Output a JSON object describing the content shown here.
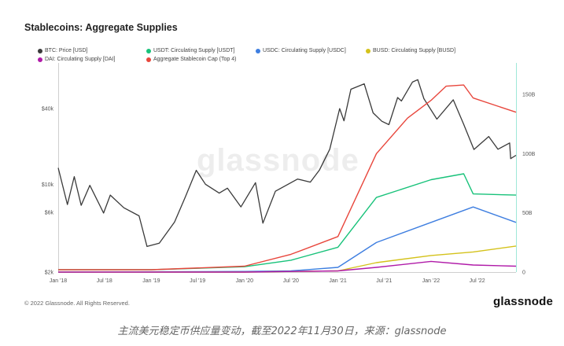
{
  "chart_data": {
    "type": "line",
    "title": "Stablecoins: Aggregate Supplies",
    "watermark": "glassnode",
    "x_ticks": [
      "Jan '18",
      "Jul '18",
      "Jan '19",
      "Jul '19",
      "Jan '20",
      "Jul '20",
      "Jan '21",
      "Jul '21",
      "Jan '22",
      "Jul '22"
    ],
    "x_range": [
      "2018-01-01",
      "2022-11-30"
    ],
    "y_left": {
      "label": "",
      "scale": "log",
      "ticks": [
        "$2k",
        "$6k",
        "$10k",
        "$40k"
      ],
      "values": [
        2000,
        6000,
        10000,
        40000
      ],
      "range": [
        2000,
        80000
      ]
    },
    "y_right": {
      "label": "",
      "scale": "linear",
      "ticks": [
        "0",
        "50B",
        "100B",
        "150B"
      ],
      "values": [
        0,
        50,
        100,
        150
      ],
      "range": [
        0,
        170
      ]
    },
    "grid": false,
    "legend_position": "top",
    "series": [
      {
        "name": "BTC: Price [USD]",
        "color": "#3a3a3a",
        "axis": "left",
        "x": [
          "2018-01-01",
          "2018-02-06",
          "2018-03-05",
          "2018-04-01",
          "2018-05-05",
          "2018-06-28",
          "2018-07-24",
          "2018-09-15",
          "2018-11-14",
          "2018-12-15",
          "2019-02-01",
          "2019-04-02",
          "2019-05-15",
          "2019-06-26",
          "2019-08-01",
          "2019-09-24",
          "2019-10-26",
          "2019-12-18",
          "2020-02-13",
          "2020-03-13",
          "2020-05-01",
          "2020-07-27",
          "2020-09-15",
          "2020-10-21",
          "2020-11-30",
          "2021-01-08",
          "2021-01-25",
          "2021-02-21",
          "2021-04-14",
          "2021-05-19",
          "2021-06-22",
          "2021-07-20",
          "2021-08-23",
          "2021-09-07",
          "2021-10-20",
          "2021-11-10",
          "2021-12-04",
          "2022-01-24",
          "2022-03-29",
          "2022-05-09",
          "2022-06-18",
          "2022-08-15",
          "2022-09-20",
          "2022-11-05",
          "2022-11-09",
          "2022-11-30"
        ],
        "values": [
          13500,
          6900,
          11500,
          6800,
          9800,
          5900,
          8200,
          6500,
          5600,
          3200,
          3400,
          5000,
          8000,
          12900,
          10000,
          8500,
          9300,
          6600,
          10300,
          4900,
          8800,
          11000,
          10400,
          13000,
          19000,
          40000,
          32000,
          57000,
          63000,
          37000,
          31700,
          29800,
          49000,
          46000,
          65000,
          68000,
          48000,
          33000,
          47000,
          30000,
          18900,
          24000,
          19000,
          21300,
          16000,
          17000
        ]
      },
      {
        "name": "USDT: Circulating Supply [USDT]",
        "color": "#18c27a",
        "axis": "right",
        "x": [
          "2018-01-01",
          "2019-01-01",
          "2020-01-01",
          "2020-07-01",
          "2021-01-01",
          "2021-06-01",
          "2022-01-01",
          "2022-05-09",
          "2022-06-15",
          "2022-11-30"
        ],
        "values": [
          2,
          2,
          4.5,
          10,
          21,
          63,
          78,
          83,
          66,
          65
        ]
      },
      {
        "name": "USDC: Circulating Supply [USDC]",
        "color": "#3e7ee0",
        "axis": "right",
        "x": [
          "2018-01-01",
          "2020-01-01",
          "2020-07-01",
          "2021-01-01",
          "2021-06-01",
          "2022-01-01",
          "2022-06-15",
          "2022-11-30"
        ],
        "values": [
          0,
          0.5,
          1,
          4,
          25,
          42,
          55,
          42
        ]
      },
      {
        "name": "BUSD: Circulating Supply [BUSD]",
        "color": "#d4c21b",
        "axis": "right",
        "x": [
          "2018-01-01",
          "2020-01-01",
          "2021-01-01",
          "2021-06-01",
          "2022-01-01",
          "2022-06-15",
          "2022-11-30"
        ],
        "values": [
          0,
          0,
          1,
          8,
          14,
          17,
          22
        ]
      },
      {
        "name": "DAI: Circulating Supply [DAI]",
        "color": "#b01aa8",
        "axis": "right",
        "x": [
          "2018-01-01",
          "2020-01-01",
          "2021-01-01",
          "2021-06-01",
          "2022-01-01",
          "2022-06-15",
          "2022-11-30"
        ],
        "values": [
          0,
          0,
          1,
          4,
          9,
          6,
          5
        ]
      },
      {
        "name": "Aggregate Stablecoin Cap (Top 4)",
        "color": "#e8463c",
        "axis": "right",
        "x": [
          "2018-01-01",
          "2019-01-01",
          "2020-01-01",
          "2020-07-01",
          "2021-01-01",
          "2021-06-01",
          "2021-10-01",
          "2022-01-01",
          "2022-03-01",
          "2022-05-09",
          "2022-06-15",
          "2022-11-30"
        ],
        "values": [
          2,
          2,
          5,
          15,
          30,
          100,
          130,
          145,
          157,
          158,
          147,
          135
        ]
      }
    ]
  },
  "footer": {
    "copyright": "© 2022 Glassnode. All Rights Reserved.",
    "logo": "glassnode"
  },
  "caption": "主流美元稳定币供应量变动，截至2022年11月30日，来源：glassnode"
}
